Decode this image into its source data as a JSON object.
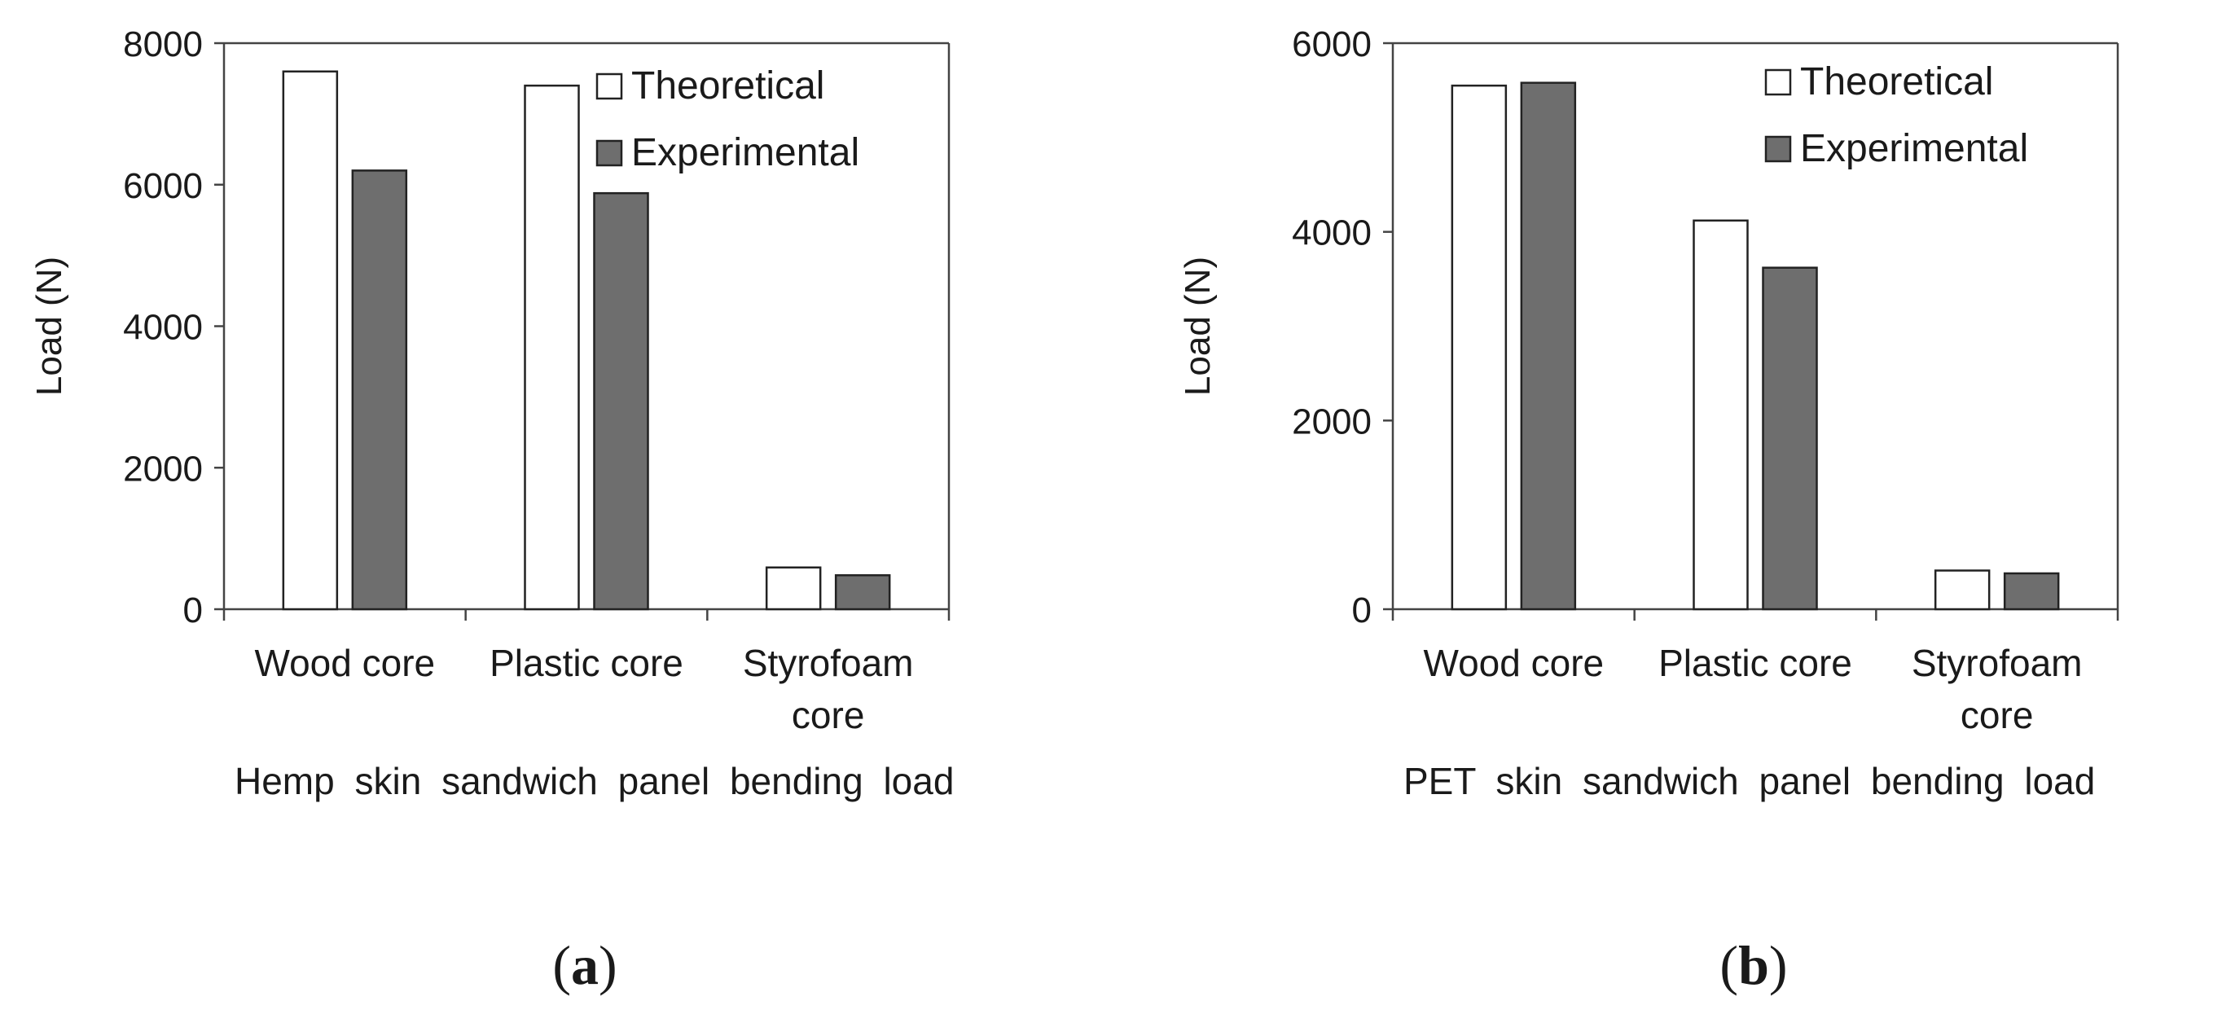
{
  "chart_data": [
    {
      "type": "bar",
      "panel_label_open": "(",
      "panel_label": "a",
      "panel_label_close": ")",
      "categories": [
        [
          "Wood core"
        ],
        [
          "Plastic core"
        ],
        [
          "Styrofoam",
          "core"
        ]
      ],
      "series": [
        {
          "name": "Theoretical",
          "color": "#ffffff",
          "values": [
            7600,
            7400,
            590
          ]
        },
        {
          "name": "Experimental",
          "color": "#6e6e6e",
          "values": [
            6200,
            5880,
            480
          ]
        }
      ],
      "xlabel": "Hemp skin sandwich panel bending load",
      "ylabel": "Load (N)",
      "ylim": [
        0,
        8000
      ],
      "yticks": [
        0,
        2000,
        4000,
        6000,
        8000
      ],
      "legend_position": "top-right",
      "grid": false
    },
    {
      "type": "bar",
      "panel_label_open": "(",
      "panel_label": "b",
      "panel_label_close": ")",
      "categories": [
        [
          "Wood core"
        ],
        [
          "Plastic core"
        ],
        [
          "Styrofoam",
          "core"
        ]
      ],
      "series": [
        {
          "name": "Theoretical",
          "color": "#ffffff",
          "values": [
            5550,
            4120,
            410
          ]
        },
        {
          "name": "Experimental",
          "color": "#6e6e6e",
          "values": [
            5580,
            3620,
            380
          ]
        }
      ],
      "xlabel": "PET skin sandwich panel bending load",
      "ylabel": "Load (N)",
      "ylim": [
        0,
        6000
      ],
      "yticks": [
        0,
        2000,
        4000,
        6000
      ],
      "legend_position": "top-right",
      "grid": false
    }
  ]
}
